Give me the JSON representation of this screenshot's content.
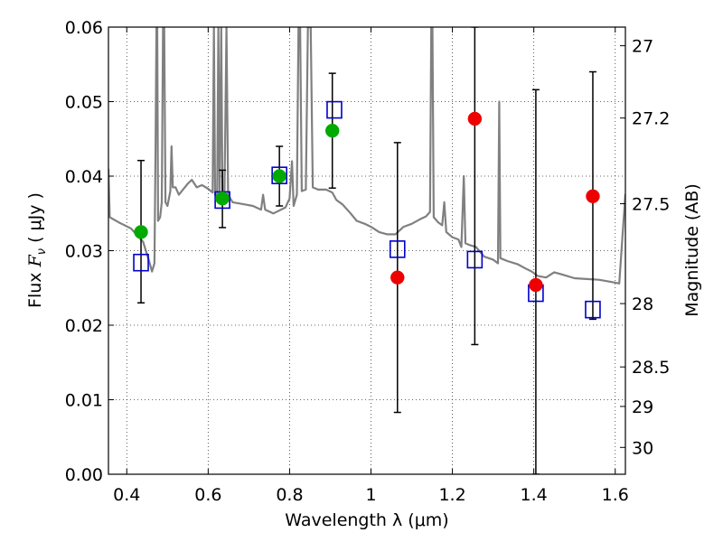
{
  "chart_data": {
    "type": "scatter",
    "xlabel": "Wavelength  λ (μm)",
    "ylabel_prefix": "Flux  ",
    "ylabel_symbol": "F",
    "ylabel_subscript": "ν",
    "ylabel_suffix": "  ( μJy )",
    "right_ylabel": "Magnitude (AB)",
    "xlim": [
      0.355,
      1.625
    ],
    "ylim": [
      0.0,
      0.06
    ],
    "x_ticks": [
      0.4,
      0.6,
      0.8,
      1.0,
      1.2,
      1.4,
      1.6
    ],
    "x_tick_labels": [
      "0.4",
      "0.6",
      "0.8",
      "1",
      "1.2",
      "1.4",
      "1.6"
    ],
    "y_ticks": [
      0.0,
      0.01,
      0.02,
      0.03,
      0.04,
      0.05,
      0.06
    ],
    "y_tick_labels": [
      "0.00",
      "0.01",
      "0.02",
      "0.03",
      "0.04",
      "0.05",
      "0.06"
    ],
    "right_ticks": [
      {
        "label": "27",
        "flux": 0.0575
      },
      {
        "label": "27.2",
        "flux": 0.0478
      },
      {
        "label": "27.5",
        "flux": 0.0363
      },
      {
        "label": "28",
        "flux": 0.0229
      },
      {
        "label": "28.5",
        "flux": 0.0144
      },
      {
        "label": "29",
        "flux": 0.0091
      },
      {
        "label": "30",
        "flux": 0.0036
      }
    ],
    "grid": true,
    "colors": {
      "model": "#808080",
      "box": "#0000cc",
      "green": "#00aa00",
      "red": "#ee0000",
      "errorbar": "#000000"
    },
    "series": [
      {
        "kind": "errorbar",
        "points": [
          {
            "x": 0.435,
            "y": 0.0325,
            "low": 0.023,
            "high": 0.0421
          },
          {
            "x": 0.635,
            "y": 0.037,
            "low": 0.0331,
            "high": 0.0408
          },
          {
            "x": 0.775,
            "y": 0.04,
            "low": 0.036,
            "high": 0.044
          },
          {
            "x": 0.905,
            "y": 0.0461,
            "low": 0.0384,
            "high": 0.0538
          },
          {
            "x": 1.065,
            "y": 0.0264,
            "low": 0.0083,
            "high": 0.0445
          },
          {
            "x": 1.255,
            "y": 0.0477,
            "low": 0.0174,
            "high": 0.06
          },
          {
            "x": 1.405,
            "y": 0.0254,
            "low": 0.0,
            "high": 0.0516
          },
          {
            "x": 1.545,
            "y": 0.0373,
            "low": 0.0208,
            "high": 0.054
          }
        ]
      },
      {
        "kind": "box",
        "points": [
          {
            "x": 0.435,
            "y": 0.0284
          },
          {
            "x": 0.635,
            "y": 0.0368
          },
          {
            "x": 0.775,
            "y": 0.0401
          },
          {
            "x": 0.91,
            "y": 0.0489
          },
          {
            "x": 1.065,
            "y": 0.0302
          },
          {
            "x": 1.255,
            "y": 0.0288
          },
          {
            "x": 1.405,
            "y": 0.0243
          },
          {
            "x": 1.545,
            "y": 0.0221
          }
        ]
      },
      {
        "kind": "green",
        "points": [
          {
            "x": 0.435,
            "y": 0.0325
          },
          {
            "x": 0.635,
            "y": 0.037
          },
          {
            "x": 0.775,
            "y": 0.04
          },
          {
            "x": 0.905,
            "y": 0.0461
          }
        ]
      },
      {
        "kind": "red",
        "points": [
          {
            "x": 1.065,
            "y": 0.0264
          },
          {
            "x": 1.255,
            "y": 0.0477
          },
          {
            "x": 1.405,
            "y": 0.0254
          },
          {
            "x": 1.545,
            "y": 0.0373
          }
        ]
      },
      {
        "kind": "model",
        "points": [
          [
            0.355,
            0.041
          ],
          [
            0.358,
            0.0345
          ],
          [
            0.38,
            0.0338
          ],
          [
            0.41,
            0.033
          ],
          [
            0.44,
            0.0312
          ],
          [
            0.455,
            0.0286
          ],
          [
            0.462,
            0.0272
          ],
          [
            0.468,
            0.0283
          ],
          [
            0.471,
            0.045
          ],
          [
            0.473,
            0.06
          ],
          [
            0.475,
            0.06
          ],
          [
            0.477,
            0.034
          ],
          [
            0.482,
            0.0345
          ],
          [
            0.486,
            0.0365
          ],
          [
            0.489,
            0.06
          ],
          [
            0.492,
            0.06
          ],
          [
            0.495,
            0.0365
          ],
          [
            0.5,
            0.036
          ],
          [
            0.507,
            0.038
          ],
          [
            0.51,
            0.044
          ],
          [
            0.513,
            0.0385
          ],
          [
            0.52,
            0.0385
          ],
          [
            0.528,
            0.0375
          ],
          [
            0.55,
            0.039
          ],
          [
            0.56,
            0.0395
          ],
          [
            0.572,
            0.0385
          ],
          [
            0.585,
            0.0388
          ],
          [
            0.6,
            0.0383
          ],
          [
            0.611,
            0.0378
          ],
          [
            0.614,
            0.06
          ],
          [
            0.617,
            0.0375
          ],
          [
            0.622,
            0.0375
          ],
          [
            0.625,
            0.06
          ],
          [
            0.628,
            0.038
          ],
          [
            0.632,
            0.06
          ],
          [
            0.635,
            0.0378
          ],
          [
            0.64,
            0.0378
          ],
          [
            0.645,
            0.06
          ],
          [
            0.649,
            0.0375
          ],
          [
            0.66,
            0.0365
          ],
          [
            0.69,
            0.0362
          ],
          [
            0.71,
            0.036
          ],
          [
            0.73,
            0.0355
          ],
          [
            0.735,
            0.0375
          ],
          [
            0.74,
            0.0355
          ],
          [
            0.76,
            0.035
          ],
          [
            0.79,
            0.0358
          ],
          [
            0.8,
            0.037
          ],
          [
            0.806,
            0.042
          ],
          [
            0.81,
            0.036
          ],
          [
            0.818,
            0.0375
          ],
          [
            0.822,
            0.06
          ],
          [
            0.826,
            0.06
          ],
          [
            0.83,
            0.038
          ],
          [
            0.84,
            0.0382
          ],
          [
            0.845,
            0.06
          ],
          [
            0.852,
            0.06
          ],
          [
            0.857,
            0.0385
          ],
          [
            0.87,
            0.0382
          ],
          [
            0.89,
            0.0382
          ],
          [
            0.905,
            0.0378
          ],
          [
            0.915,
            0.0368
          ],
          [
            0.93,
            0.0362
          ],
          [
            0.95,
            0.035
          ],
          [
            0.965,
            0.034
          ],
          [
            0.985,
            0.0336
          ],
          [
            1.0,
            0.0332
          ],
          [
            1.02,
            0.0325
          ],
          [
            1.04,
            0.0322
          ],
          [
            1.06,
            0.0322
          ],
          [
            1.08,
            0.0332
          ],
          [
            1.1,
            0.0336
          ],
          [
            1.12,
            0.0342
          ],
          [
            1.135,
            0.0346
          ],
          [
            1.145,
            0.0352
          ],
          [
            1.148,
            0.06
          ],
          [
            1.151,
            0.06
          ],
          [
            1.154,
            0.0345
          ],
          [
            1.165,
            0.0338
          ],
          [
            1.175,
            0.0334
          ],
          [
            1.18,
            0.0365
          ],
          [
            1.185,
            0.0325
          ],
          [
            1.2,
            0.0318
          ],
          [
            1.215,
            0.0315
          ],
          [
            1.222,
            0.0305
          ],
          [
            1.228,
            0.04
          ],
          [
            1.232,
            0.031
          ],
          [
            1.24,
            0.0308
          ],
          [
            1.258,
            0.0305
          ],
          [
            1.278,
            0.0292
          ],
          [
            1.3,
            0.0288
          ],
          [
            1.312,
            0.0283
          ],
          [
            1.315,
            0.05
          ],
          [
            1.318,
            0.029
          ],
          [
            1.335,
            0.0286
          ],
          [
            1.36,
            0.0282
          ],
          [
            1.38,
            0.0276
          ],
          [
            1.395,
            0.0272
          ],
          [
            1.41,
            0.0266
          ],
          [
            1.43,
            0.0264
          ],
          [
            1.45,
            0.0271
          ],
          [
            1.47,
            0.0268
          ],
          [
            1.5,
            0.0263
          ],
          [
            1.53,
            0.0262
          ],
          [
            1.56,
            0.0261
          ],
          [
            1.59,
            0.0258
          ],
          [
            1.61,
            0.0256
          ],
          [
            1.618,
            0.032
          ],
          [
            1.625,
            0.0376
          ]
        ]
      }
    ]
  }
}
